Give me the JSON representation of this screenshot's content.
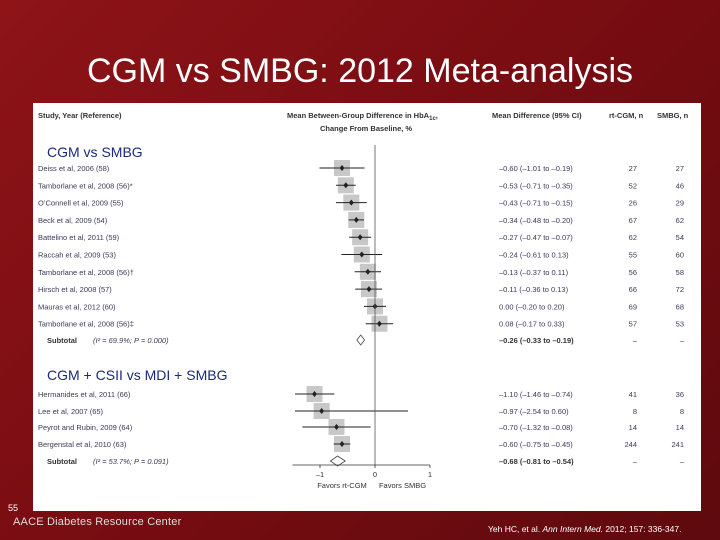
{
  "slide": {
    "title": "CGM vs SMBG: 2012 Meta-analysis",
    "page_number": "55",
    "footer_brand": "AACE Diabetes Resource Center",
    "citation_pre": "Yeh HC, et al. ",
    "citation_journal": "Ann Intern Med.",
    "citation_post": " 2012; 157: 336-347."
  },
  "headers": {
    "study": "Study, Year (Reference)",
    "plot_line1": "Mean Between-Group Difference in HbA",
    "plot_sub": "1c",
    "plot_line1_end": ",",
    "plot_line2": "Change From Baseline, %",
    "md": "Mean Difference (95% CI)",
    "rt_n": "rt-CGM, n",
    "smbg_n": "SMBG, n"
  },
  "chart_data": {
    "type": "forest",
    "xlim": [
      -1.5,
      1.0
    ],
    "xticks": [
      -1,
      0,
      1
    ],
    "xtick_labels": [
      "–1",
      "0",
      "1"
    ],
    "favors_left": "Favors rt-CGM",
    "favors_right": "Favors SMBG",
    "groups": [
      {
        "label": "CGM vs SMBG",
        "studies": [
          {
            "study": "Deiss et al, 2006 (58)",
            "md": -0.6,
            "lo": -1.01,
            "hi": -0.19,
            "ci_text": "–0.60 (–1.01 to –0.19)",
            "rt_n": "27",
            "smbg_n": "27"
          },
          {
            "study": "Tamborlane et al, 2008 (56)*",
            "md": -0.53,
            "lo": -0.71,
            "hi": -0.35,
            "ci_text": "–0.53 (–0.71 to –0.35)",
            "rt_n": "52",
            "smbg_n": "46"
          },
          {
            "study": "O’Connell et al, 2009 (55)",
            "md": -0.43,
            "lo": -0.71,
            "hi": -0.15,
            "ci_text": "–0.43 (–0.71 to –0.15)",
            "rt_n": "26",
            "smbg_n": "29"
          },
          {
            "study": "Beck et al, 2009 (54)",
            "md": -0.34,
            "lo": -0.48,
            "hi": -0.2,
            "ci_text": "–0.34 (–0.48 to –0.20)",
            "rt_n": "67",
            "smbg_n": "62"
          },
          {
            "study": "Battelino et al, 2011 (59)",
            "md": -0.27,
            "lo": -0.47,
            "hi": -0.07,
            "ci_text": "–0.27 (–0.47 to –0.07)",
            "rt_n": "62",
            "smbg_n": "54"
          },
          {
            "study": "Raccah et al, 2009 (53)",
            "md": -0.24,
            "lo": -0.61,
            "hi": 0.13,
            "ci_text": "–0.24 (–0.61 to 0.13)",
            "rt_n": "55",
            "smbg_n": "60"
          },
          {
            "study": "Tamborlane et al, 2008 (56)†",
            "md": -0.13,
            "lo": -0.37,
            "hi": 0.11,
            "ci_text": "–0.13 (–0.37 to 0.11)",
            "rt_n": "56",
            "smbg_n": "58"
          },
          {
            "study": "Hirsch et al, 2008 (57)",
            "md": -0.11,
            "lo": -0.36,
            "hi": 0.13,
            "ci_text": "–0.11 (–0.36 to 0.13)",
            "rt_n": "66",
            "smbg_n": "72"
          },
          {
            "study": "Mauras et al, 2012 (60)",
            "md": 0.0,
            "lo": -0.2,
            "hi": 0.2,
            "ci_text": "0.00 (–0.20 to 0.20)",
            "rt_n": "69",
            "smbg_n": "68"
          },
          {
            "study": "Tamborlane et al, 2008 (56)‡",
            "md": 0.08,
            "lo": -0.17,
            "hi": 0.33,
            "ci_text": "0.08 (–0.17 to 0.33)",
            "rt_n": "57",
            "smbg_n": "53"
          }
        ],
        "subtotal": {
          "label": "Subtotal",
          "stat": "(I² = 69.9%; P = 0.000)",
          "md": -0.26,
          "lo": -0.33,
          "hi": -0.19,
          "ci_text": "–0.26 (–0.33 to –0.19)",
          "rt_n": "–",
          "smbg_n": "–"
        }
      },
      {
        "label": "CGM + CSII vs MDI + SMBG",
        "studies": [
          {
            "study": "Hermanides et al, 2011 (66)",
            "md": -1.1,
            "lo": -1.46,
            "hi": -0.74,
            "ci_text": "–1.10 (–1.46 to –0.74)",
            "rt_n": "41",
            "smbg_n": "36"
          },
          {
            "study": "Lee et al, 2007 (65)",
            "md": -0.97,
            "lo": -2.54,
            "hi": 0.6,
            "ci_text": "–0.97 (–2.54 to 0.60)",
            "rt_n": "8",
            "smbg_n": "8"
          },
          {
            "study": "Peyrot and Rubin, 2009 (64)",
            "md": -0.7,
            "lo": -1.32,
            "hi": -0.08,
            "ci_text": "–0.70 (–1.32 to –0.08)",
            "rt_n": "14",
            "smbg_n": "14"
          },
          {
            "study": "Bergenstal et al, 2010 (63)",
            "md": -0.6,
            "lo": -0.75,
            "hi": -0.45,
            "ci_text": "–0.60 (–0.75 to –0.45)",
            "rt_n": "244",
            "smbg_n": "241"
          }
        ],
        "subtotal": {
          "label": "Subtotal",
          "stat": "(I² = 53.7%; P = 0.091)",
          "md": -0.68,
          "lo": -0.81,
          "hi": -0.54,
          "ci_text": "–0.68 (–0.81 to –0.54)",
          "rt_n": "–",
          "smbg_n": "–"
        }
      }
    ]
  }
}
